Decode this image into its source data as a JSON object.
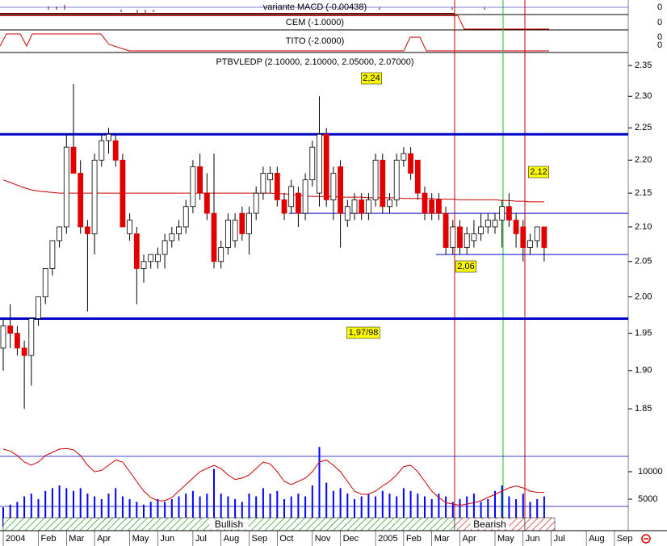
{
  "chart_data": {
    "type": "candlestick",
    "title": "PTBVLEDP (2.10000, 2.10000, 2.05000, 2.07000)",
    "categories": [
      "2004",
      null,
      null,
      null,
      null,
      "Feb",
      null,
      null,
      null,
      "Mar",
      null,
      null,
      null,
      "Apr",
      null,
      null,
      null,
      null,
      "May",
      null,
      null,
      null,
      "Jun",
      null,
      null,
      null,
      null,
      "Jul",
      null,
      null,
      null,
      "Aug",
      null,
      null,
      null,
      "Sep",
      null,
      null,
      null,
      "Oct",
      null,
      null,
      null,
      null,
      "Nov",
      null,
      null,
      null,
      "Dec",
      null,
      null,
      null,
      null,
      "2005",
      null,
      null,
      null,
      "Feb",
      null,
      null,
      null,
      "Mar",
      null,
      null,
      null,
      "Apr",
      null,
      null,
      null,
      null,
      "May",
      null,
      null,
      null,
      "Jun",
      null,
      null,
      null,
      "Jul",
      null,
      null,
      null,
      null,
      "Aug",
      null,
      null,
      null,
      "Sep",
      null,
      null
    ],
    "open": [
      1.93,
      1.96,
      1.95,
      1.93,
      1.92,
      1.97,
      2.0,
      2.04,
      2.08,
      2.1,
      2.22,
      2.18,
      2.1,
      2.09,
      2.2,
      2.23,
      2.23,
      2.2,
      2.09,
      2.09,
      2.04,
      2.05,
      2.05,
      2.06,
      2.08,
      2.09,
      2.1,
      2.13,
      2.19,
      2.15,
      2.12,
      2.05,
      2.07,
      2.08,
      2.12,
      2.09,
      2.12,
      2.15,
      2.17,
      2.18,
      2.14,
      2.13,
      2.15,
      2.12,
      2.17,
      2.15,
      2.24,
      2.14,
      2.19,
      2.11,
      2.12,
      2.14,
      2.12,
      2.14,
      2.2,
      2.13,
      2.14,
      2.2,
      2.21,
      2.2,
      2.15,
      2.14,
      2.14,
      2.12,
      2.07,
      2.1,
      2.07,
      2.08,
      2.09,
      2.1,
      2.1,
      2.11,
      2.13,
      2.11,
      2.1,
      2.07,
      2.08,
      2.1,
      null,
      null,
      null,
      null,
      null,
      null,
      null,
      null,
      null,
      null,
      null,
      null
    ],
    "high": [
      1.97,
      1.99,
      1.96,
      1.94,
      1.97,
      2.0,
      2.04,
      2.08,
      2.1,
      2.24,
      2.32,
      2.2,
      2.11,
      2.21,
      2.24,
      2.25,
      2.24,
      2.21,
      2.12,
      2.1,
      2.06,
      2.06,
      2.07,
      2.09,
      2.1,
      2.11,
      2.14,
      2.2,
      2.21,
      2.18,
      2.21,
      2.08,
      2.12,
      2.12,
      2.13,
      2.13,
      2.16,
      2.19,
      2.19,
      2.19,
      2.15,
      2.17,
      2.16,
      2.18,
      2.23,
      2.3,
      2.25,
      2.19,
      2.2,
      2.14,
      2.15,
      2.15,
      2.15,
      2.21,
      2.21,
      2.15,
      2.21,
      2.22,
      2.22,
      2.2,
      2.16,
      2.15,
      2.15,
      2.13,
      2.11,
      2.11,
      2.1,
      2.11,
      2.12,
      2.12,
      2.12,
      2.14,
      2.15,
      2.12,
      2.11,
      2.09,
      2.1,
      2.1,
      null,
      null,
      null,
      null,
      null,
      null,
      null,
      null,
      null,
      null,
      null,
      null
    ],
    "low": [
      1.9,
      1.93,
      1.92,
      1.85,
      1.88,
      1.96,
      1.99,
      2.03,
      2.07,
      2.09,
      2.18,
      2.09,
      1.98,
      2.06,
      2.19,
      2.21,
      2.19,
      2.1,
      2.08,
      1.99,
      2.02,
      2.04,
      2.04,
      2.04,
      2.07,
      2.08,
      2.09,
      2.12,
      2.14,
      2.11,
      2.04,
      2.04,
      2.06,
      2.07,
      2.08,
      2.06,
      2.11,
      2.14,
      2.15,
      2.13,
      2.11,
      2.12,
      2.1,
      2.11,
      2.16,
      2.13,
      2.13,
      2.11,
      2.07,
      2.1,
      2.11,
      2.11,
      2.11,
      2.13,
      2.12,
      2.12,
      2.13,
      2.19,
      2.17,
      2.14,
      2.11,
      2.11,
      2.11,
      2.06,
      2.06,
      2.06,
      2.06,
      2.07,
      2.08,
      2.09,
      2.09,
      2.07,
      2.1,
      2.07,
      2.05,
      2.06,
      2.07,
      2.05,
      null,
      null,
      null,
      null,
      null,
      null,
      null,
      null,
      null,
      null,
      null,
      null
    ],
    "close": [
      1.96,
      1.95,
      1.93,
      1.92,
      1.97,
      2.0,
      2.04,
      2.08,
      2.1,
      2.22,
      2.18,
      2.1,
      2.09,
      2.2,
      2.23,
      2.24,
      2.2,
      2.1,
      2.11,
      2.04,
      2.05,
      2.06,
      2.06,
      2.08,
      2.09,
      2.1,
      2.13,
      2.19,
      2.15,
      2.12,
      2.05,
      2.07,
      2.11,
      2.11,
      2.09,
      2.12,
      2.15,
      2.18,
      2.18,
      2.14,
      2.12,
      2.16,
      2.12,
      2.17,
      2.22,
      2.24,
      2.14,
      2.18,
      2.12,
      2.13,
      2.14,
      2.12,
      2.14,
      2.2,
      2.13,
      2.14,
      2.2,
      2.21,
      2.18,
      2.15,
      2.12,
      2.12,
      2.12,
      2.07,
      2.1,
      2.07,
      2.09,
      2.09,
      2.1,
      2.11,
      2.11,
      2.13,
      2.11,
      2.09,
      2.07,
      2.08,
      2.1,
      2.07,
      null,
      null,
      null,
      null,
      null,
      null,
      null,
      null,
      null,
      null,
      null,
      null
    ],
    "up_color": "#ffffff",
    "down_color": "#e00000",
    "log_scale": true,
    "ylim": [
      1.81,
      2.37
    ],
    "yticks": [
      {
        "value": 1.85,
        "label": "1.85"
      },
      {
        "value": 1.9,
        "label": "1.90"
      },
      1.95,
      {
        "value": 2.0,
        "label": "2.00"
      },
      2.05,
      {
        "value": 2.1,
        "label": "2.10"
      },
      2.15,
      {
        "value": 2.2,
        "label": "2.20"
      },
      2.25,
      {
        "value": 2.3,
        "label": "2.30"
      },
      2.35
    ],
    "moving_average": {
      "color": "#cc0000",
      "values": [
        2.17,
        2.166,
        2.162,
        2.158,
        2.155,
        2.153,
        2.152,
        2.151,
        2.15,
        2.15,
        2.15,
        2.15,
        2.15,
        2.15,
        2.15,
        2.15,
        2.15,
        2.15,
        2.15,
        2.15,
        2.15,
        2.15,
        2.15,
        2.15,
        2.15,
        2.15,
        2.15,
        2.15,
        2.15,
        2.15,
        2.15,
        2.15,
        2.15,
        2.15,
        2.15,
        2.15,
        2.15,
        2.15,
        2.15,
        2.149,
        2.149,
        2.148,
        2.147,
        2.146,
        2.145,
        2.145,
        2.145,
        2.145,
        2.144,
        2.144,
        2.144,
        2.144,
        2.143,
        2.143,
        2.143,
        2.143,
        2.143,
        2.142,
        2.142,
        2.142,
        2.142,
        2.142,
        2.141,
        2.141,
        2.141,
        2.14,
        2.14,
        2.14,
        2.14,
        2.14,
        2.14,
        2.139,
        2.139,
        2.138,
        2.138,
        2.137,
        2.137,
        2.137,
        null,
        null,
        null,
        null,
        null,
        null,
        null,
        null,
        null,
        null,
        null,
        null
      ]
    },
    "levels": [
      {
        "value": 2.24,
        "label": "2,24",
        "color": "#0000cc",
        "width": 3
      },
      {
        "value": 2.12,
        "label": "2,12",
        "color": "#0000cc",
        "width": 1
      },
      {
        "value": 2.06,
        "label": "2,06",
        "color": "#0000cc",
        "width": 1
      },
      {
        "value": 1.97,
        "label": "1,97/98",
        "color": "#0000cc",
        "width": 3
      }
    ],
    "volume": {
      "color": "#0000ff",
      "ylim": [
        0,
        15000
      ],
      "yticks": [
        5000,
        10000
      ],
      "values": [
        3500,
        4000,
        4500,
        5500,
        6000,
        5000,
        6500,
        7000,
        7500,
        7000,
        6500,
        7000,
        6000,
        5500,
        5000,
        6000,
        7000,
        5500,
        5000,
        4500,
        4000,
        4500,
        5000,
        4500,
        5000,
        5500,
        6000,
        6500,
        5500,
        6000,
        10500,
        6000,
        5500,
        5000,
        4500,
        6000,
        5500,
        7000,
        6000,
        6500,
        5000,
        5500,
        6000,
        5500,
        7500,
        14500,
        8000,
        6500,
        7000,
        6000,
        5000,
        5500,
        6000,
        5500,
        6500,
        6000,
        5500,
        7000,
        6500,
        6000,
        5500,
        5000,
        6000,
        5500,
        4500,
        5000,
        5500,
        6000,
        4500,
        5000,
        6500,
        7500,
        5500,
        5000,
        6000,
        4500,
        5000,
        5500,
        null,
        null,
        null,
        null,
        null,
        null,
        null,
        null,
        null,
        null,
        null,
        null
      ]
    },
    "oscillator": {
      "color": "#cc0000",
      "ylim": [
        0,
        100
      ],
      "values": [
        95,
        92,
        85,
        75,
        70,
        75,
        85,
        90,
        95,
        96,
        94,
        85,
        70,
        60,
        62,
        70,
        78,
        75,
        60,
        45,
        30,
        20,
        15,
        15,
        20,
        30,
        40,
        50,
        60,
        65,
        70,
        65,
        55,
        48,
        50,
        55,
        65,
        75,
        72,
        60,
        45,
        40,
        45,
        50,
        60,
        75,
        78,
        70,
        60,
        45,
        30,
        25,
        25,
        30,
        38,
        45,
        55,
        68,
        70,
        60,
        45,
        30,
        20,
        12,
        10,
        8,
        10,
        12,
        15,
        20,
        25,
        30,
        35,
        38,
        35,
        30,
        28,
        28,
        null,
        null,
        null,
        null,
        null,
        null,
        null,
        null,
        null,
        null,
        null,
        null
      ]
    },
    "regimes": [
      {
        "label": "Bullish",
        "color": "#2e9e2e"
      },
      {
        "label": "Bearish",
        "color": "#d03030"
      }
    ],
    "indicators": [
      {
        "label": "variante MACD (-0.00438)",
        "ticks": [
          0
        ]
      },
      {
        "label": "CEM (-1.0000)",
        "ticks": [
          0
        ]
      },
      {
        "label": "TITO (-2.0000)",
        "ticks": [
          0,
          0
        ]
      }
    ]
  }
}
